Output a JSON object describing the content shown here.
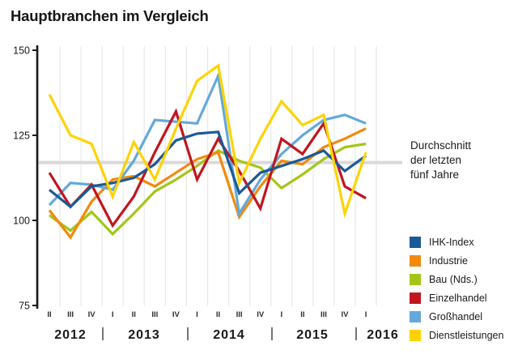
{
  "title": "Hauptbranchen im Vergleich",
  "avg_label_lines": [
    "Durchschnitt",
    "der letzten",
    "fünf Jahre"
  ],
  "chart_data": {
    "type": "line",
    "title": "Hauptbranchen im Vergleich",
    "quarters": [
      "II",
      "III",
      "IV",
      "I",
      "II",
      "III",
      "IV",
      "I",
      "II",
      "III",
      "IV",
      "I",
      "II",
      "III",
      "IV",
      "I"
    ],
    "years": [
      {
        "label": "2012",
        "center": 87
      },
      {
        "label": "2013",
        "center": 178
      },
      {
        "label": "2014",
        "center": 283
      },
      {
        "label": "2015",
        "center": 386
      },
      {
        "label": "2016",
        "center": 473
      }
    ],
    "year_separators_x": [
      127,
      232,
      336,
      440
    ],
    "yticks": [
      150,
      125,
      100,
      75
    ],
    "ylim": [
      75,
      150
    ],
    "grid": true,
    "legend_position": "bottom-right",
    "average_line": {
      "value": 117,
      "color": "#d9d9d9",
      "label": "Durchschnitt der letzten fünf Jahre"
    },
    "series": [
      {
        "name": "IHK-Index",
        "color": "#1a5a96",
        "values": [
          109,
          104,
          110,
          111,
          112.5,
          116.5,
          123.5,
          125.5,
          126,
          108,
          114,
          116,
          118,
          120.5,
          114.5,
          119
        ]
      },
      {
        "name": "Industrie",
        "color": "#f28a0e",
        "values": [
          103,
          95,
          105.5,
          112,
          113,
          110,
          114,
          118,
          120,
          101,
          110,
          117.5,
          116.5,
          121.5,
          124,
          127
        ]
      },
      {
        "name": "Bau (Nds.)",
        "color": "#a4c617",
        "values": [
          101.5,
          97,
          102.5,
          96,
          102,
          108.5,
          112,
          116,
          120.5,
          117.5,
          115.5,
          109.5,
          113.5,
          118,
          121.5,
          122.5
        ]
      },
      {
        "name": "Einzelhandel",
        "color": "#c1161f",
        "values": [
          114,
          104,
          110.5,
          98.5,
          107,
          120,
          132,
          112,
          124,
          114.5,
          103.5,
          124,
          119.5,
          128.5,
          110,
          106.5
        ]
      },
      {
        "name": "Großhandel",
        "color": "#64a9da",
        "values": [
          104.5,
          111,
          110.5,
          109,
          117.5,
          129.5,
          129,
          128.5,
          142.5,
          102,
          112,
          119.5,
          125,
          129.5,
          131,
          128.5
        ]
      },
      {
        "name": "Dienstleistungen",
        "color": "#fed304",
        "values": [
          137,
          125,
          122.5,
          107,
          123,
          112,
          127,
          141,
          145.5,
          111,
          124,
          135,
          128,
          131,
          102,
          120
        ]
      }
    ],
    "draw_order": [
      "Bau (Nds.)",
      "Industrie",
      "Großhandel",
      "Einzelhandel",
      "IHK-Index",
      "Dienstleistungen"
    ]
  }
}
